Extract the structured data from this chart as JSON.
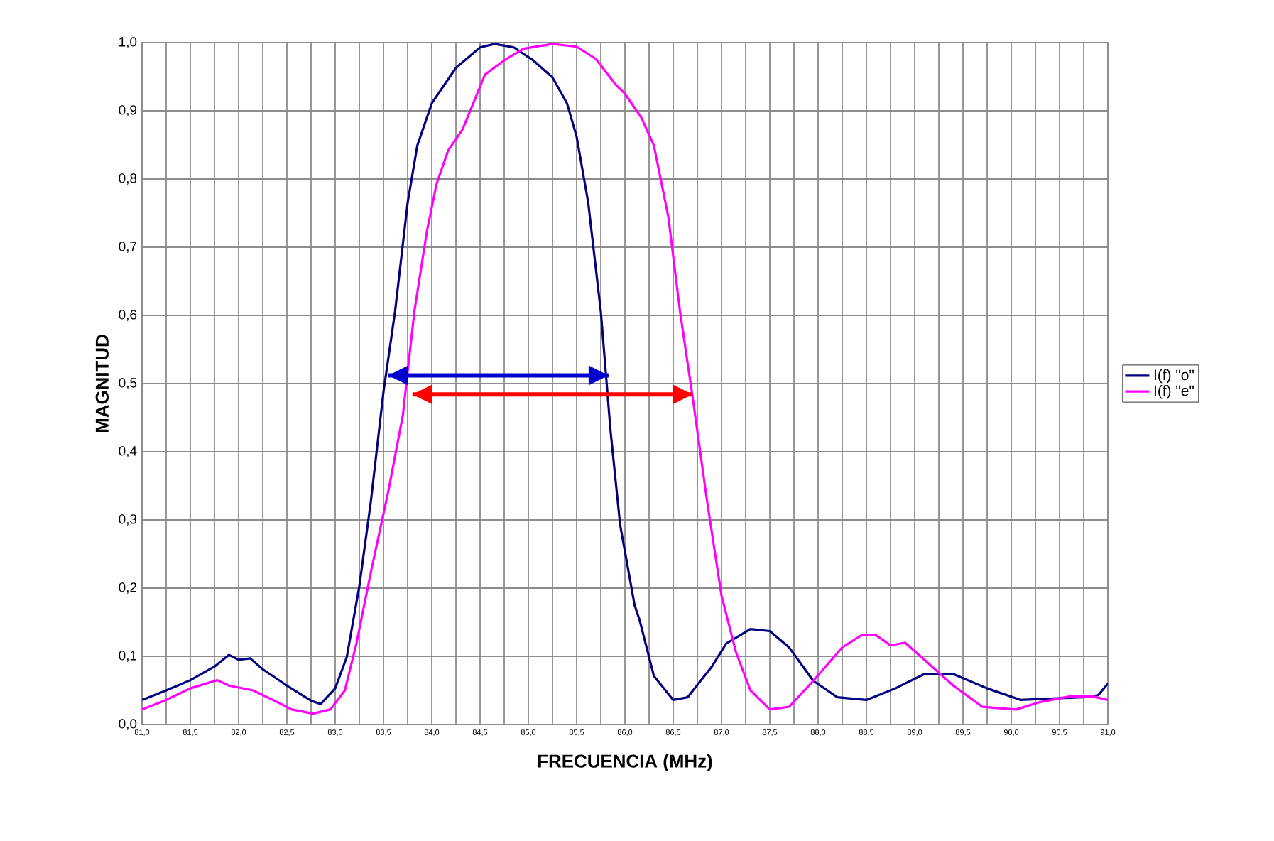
{
  "chart_data": {
    "type": "line",
    "xlabel": "FRECUENCIA (MHz)",
    "ylabel": "MAGNITUD",
    "xlim": [
      81.0,
      91.0
    ],
    "ylim": [
      0.0,
      1.0
    ],
    "xticks": [
      {
        "value": 81.0,
        "label": "81,0"
      },
      {
        "value": 81.25,
        "label": null
      },
      {
        "value": 81.5,
        "label": "81,5"
      },
      {
        "value": 81.75,
        "label": null
      },
      {
        "value": 82.0,
        "label": "82,0"
      },
      {
        "value": 82.25,
        "label": null
      },
      {
        "value": 82.5,
        "label": "82,5"
      },
      {
        "value": 82.75,
        "label": null
      },
      {
        "value": 83.0,
        "label": "83,0"
      },
      {
        "value": 83.25,
        "label": null
      },
      {
        "value": 83.5,
        "label": "83,5"
      },
      {
        "value": 83.75,
        "label": null
      },
      {
        "value": 84.0,
        "label": "84,0"
      },
      {
        "value": 84.25,
        "label": null
      },
      {
        "value": 84.5,
        "label": "84,5"
      },
      {
        "value": 84.75,
        "label": null
      },
      {
        "value": 85.0,
        "label": "85,0"
      },
      {
        "value": 85.25,
        "label": null
      },
      {
        "value": 85.5,
        "label": "85,5"
      },
      {
        "value": 85.75,
        "label": null
      },
      {
        "value": 86.0,
        "label": "86,0"
      },
      {
        "value": 86.25,
        "label": null
      },
      {
        "value": 86.5,
        "label": "86,5"
      },
      {
        "value": 86.75,
        "label": null
      },
      {
        "value": 87.0,
        "label": "87,0"
      },
      {
        "value": 87.25,
        "label": null
      },
      {
        "value": 87.5,
        "label": "87,5"
      },
      {
        "value": 87.75,
        "label": null
      },
      {
        "value": 88.0,
        "label": "88,0"
      },
      {
        "value": 88.25,
        "label": null
      },
      {
        "value": 88.5,
        "label": "88,5"
      },
      {
        "value": 88.75,
        "label": null
      },
      {
        "value": 89.0,
        "label": "89,0"
      },
      {
        "value": 89.25,
        "label": null
      },
      {
        "value": 89.5,
        "label": "89,5"
      },
      {
        "value": 89.75,
        "label": null
      },
      {
        "value": 90.0,
        "label": "90,0"
      },
      {
        "value": 90.25,
        "label": null
      },
      {
        "value": 90.5,
        "label": "90,5"
      },
      {
        "value": 90.75,
        "label": null
      },
      {
        "value": 91.0,
        "label": "91,0"
      }
    ],
    "yticks": [
      {
        "value": 0.0,
        "label": "0,0"
      },
      {
        "value": 0.1,
        "label": "0,1"
      },
      {
        "value": 0.2,
        "label": "0,2"
      },
      {
        "value": 0.3,
        "label": "0,3"
      },
      {
        "value": 0.4,
        "label": "0,4"
      },
      {
        "value": 0.5,
        "label": "0,5"
      },
      {
        "value": 0.6,
        "label": "0,6"
      },
      {
        "value": 0.7,
        "label": "0,7"
      },
      {
        "value": 0.8,
        "label": "0,8"
      },
      {
        "value": 0.9,
        "label": "0,9"
      },
      {
        "value": 1.0,
        "label": "1,0"
      }
    ],
    "grid": true,
    "legend": "right",
    "marker": "none",
    "line_style": "solid",
    "series": [
      {
        "name": "I(f) \"o\"",
        "color": "#000080",
        "x": [
          81.0,
          81.25,
          81.5,
          81.75,
          81.9,
          82.0,
          82.12,
          82.25,
          82.5,
          82.75,
          82.85,
          83.0,
          83.12,
          83.25,
          83.37,
          83.5,
          83.62,
          83.75,
          83.85,
          84.0,
          84.25,
          84.5,
          84.65,
          84.85,
          85.05,
          85.25,
          85.4,
          85.5,
          85.62,
          85.75,
          85.85,
          85.95,
          86.1,
          86.15,
          86.3,
          86.5,
          86.65,
          86.9,
          87.05,
          87.3,
          87.5,
          87.7,
          87.95,
          88.2,
          88.5,
          88.8,
          89.1,
          89.4,
          89.75,
          90.1,
          90.4,
          90.75,
          90.9,
          91.0
        ],
        "values": [
          0.036,
          0.05,
          0.065,
          0.085,
          0.102,
          0.095,
          0.097,
          0.081,
          0.057,
          0.035,
          0.03,
          0.053,
          0.099,
          0.203,
          0.328,
          0.488,
          0.606,
          0.765,
          0.849,
          0.911,
          0.963,
          0.993,
          0.998,
          0.993,
          0.974,
          0.949,
          0.911,
          0.862,
          0.765,
          0.606,
          0.432,
          0.293,
          0.175,
          0.154,
          0.071,
          0.036,
          0.04,
          0.085,
          0.119,
          0.14,
          0.137,
          0.113,
          0.064,
          0.04,
          0.036,
          0.053,
          0.074,
          0.074,
          0.053,
          0.036,
          0.038,
          0.04,
          0.043,
          0.06
        ]
      },
      {
        "name": "I(f) \"e\"",
        "color": "#ff00ff",
        "x": [
          81.0,
          81.25,
          81.5,
          81.78,
          81.9,
          82.15,
          82.4,
          82.55,
          82.77,
          82.95,
          83.1,
          83.22,
          83.37,
          83.55,
          83.7,
          83.82,
          83.95,
          84.05,
          84.17,
          84.32,
          84.45,
          84.55,
          84.75,
          84.95,
          85.25,
          85.5,
          85.7,
          85.9,
          86.0,
          86.17,
          86.3,
          86.45,
          86.57,
          86.7,
          86.85,
          87.0,
          87.15,
          87.3,
          87.5,
          87.7,
          87.95,
          88.25,
          88.45,
          88.6,
          88.75,
          88.9,
          89.1,
          89.4,
          89.7,
          90.05,
          90.3,
          90.6,
          90.85,
          91.0
        ],
        "values": [
          0.022,
          0.036,
          0.053,
          0.065,
          0.057,
          0.05,
          0.033,
          0.022,
          0.016,
          0.022,
          0.05,
          0.119,
          0.224,
          0.342,
          0.453,
          0.606,
          0.724,
          0.793,
          0.842,
          0.873,
          0.918,
          0.953,
          0.974,
          0.991,
          0.998,
          0.994,
          0.976,
          0.939,
          0.925,
          0.89,
          0.849,
          0.744,
          0.606,
          0.481,
          0.328,
          0.189,
          0.106,
          0.05,
          0.022,
          0.026,
          0.064,
          0.113,
          0.131,
          0.131,
          0.116,
          0.12,
          0.095,
          0.057,
          0.026,
          0.022,
          0.033,
          0.041,
          0.041,
          0.036
        ]
      },
      {
        "type": "line",
        "color": "#0000cc",
        "x": [
          83.55,
          85.83
        ],
        "values": [
          0.512,
          0.512
        ]
      },
      {
        "type": "line",
        "color": "#ff0000",
        "x": [
          83.8,
          86.7
        ],
        "values": [
          0.484,
          0.484
        ]
      }
    ]
  }
}
